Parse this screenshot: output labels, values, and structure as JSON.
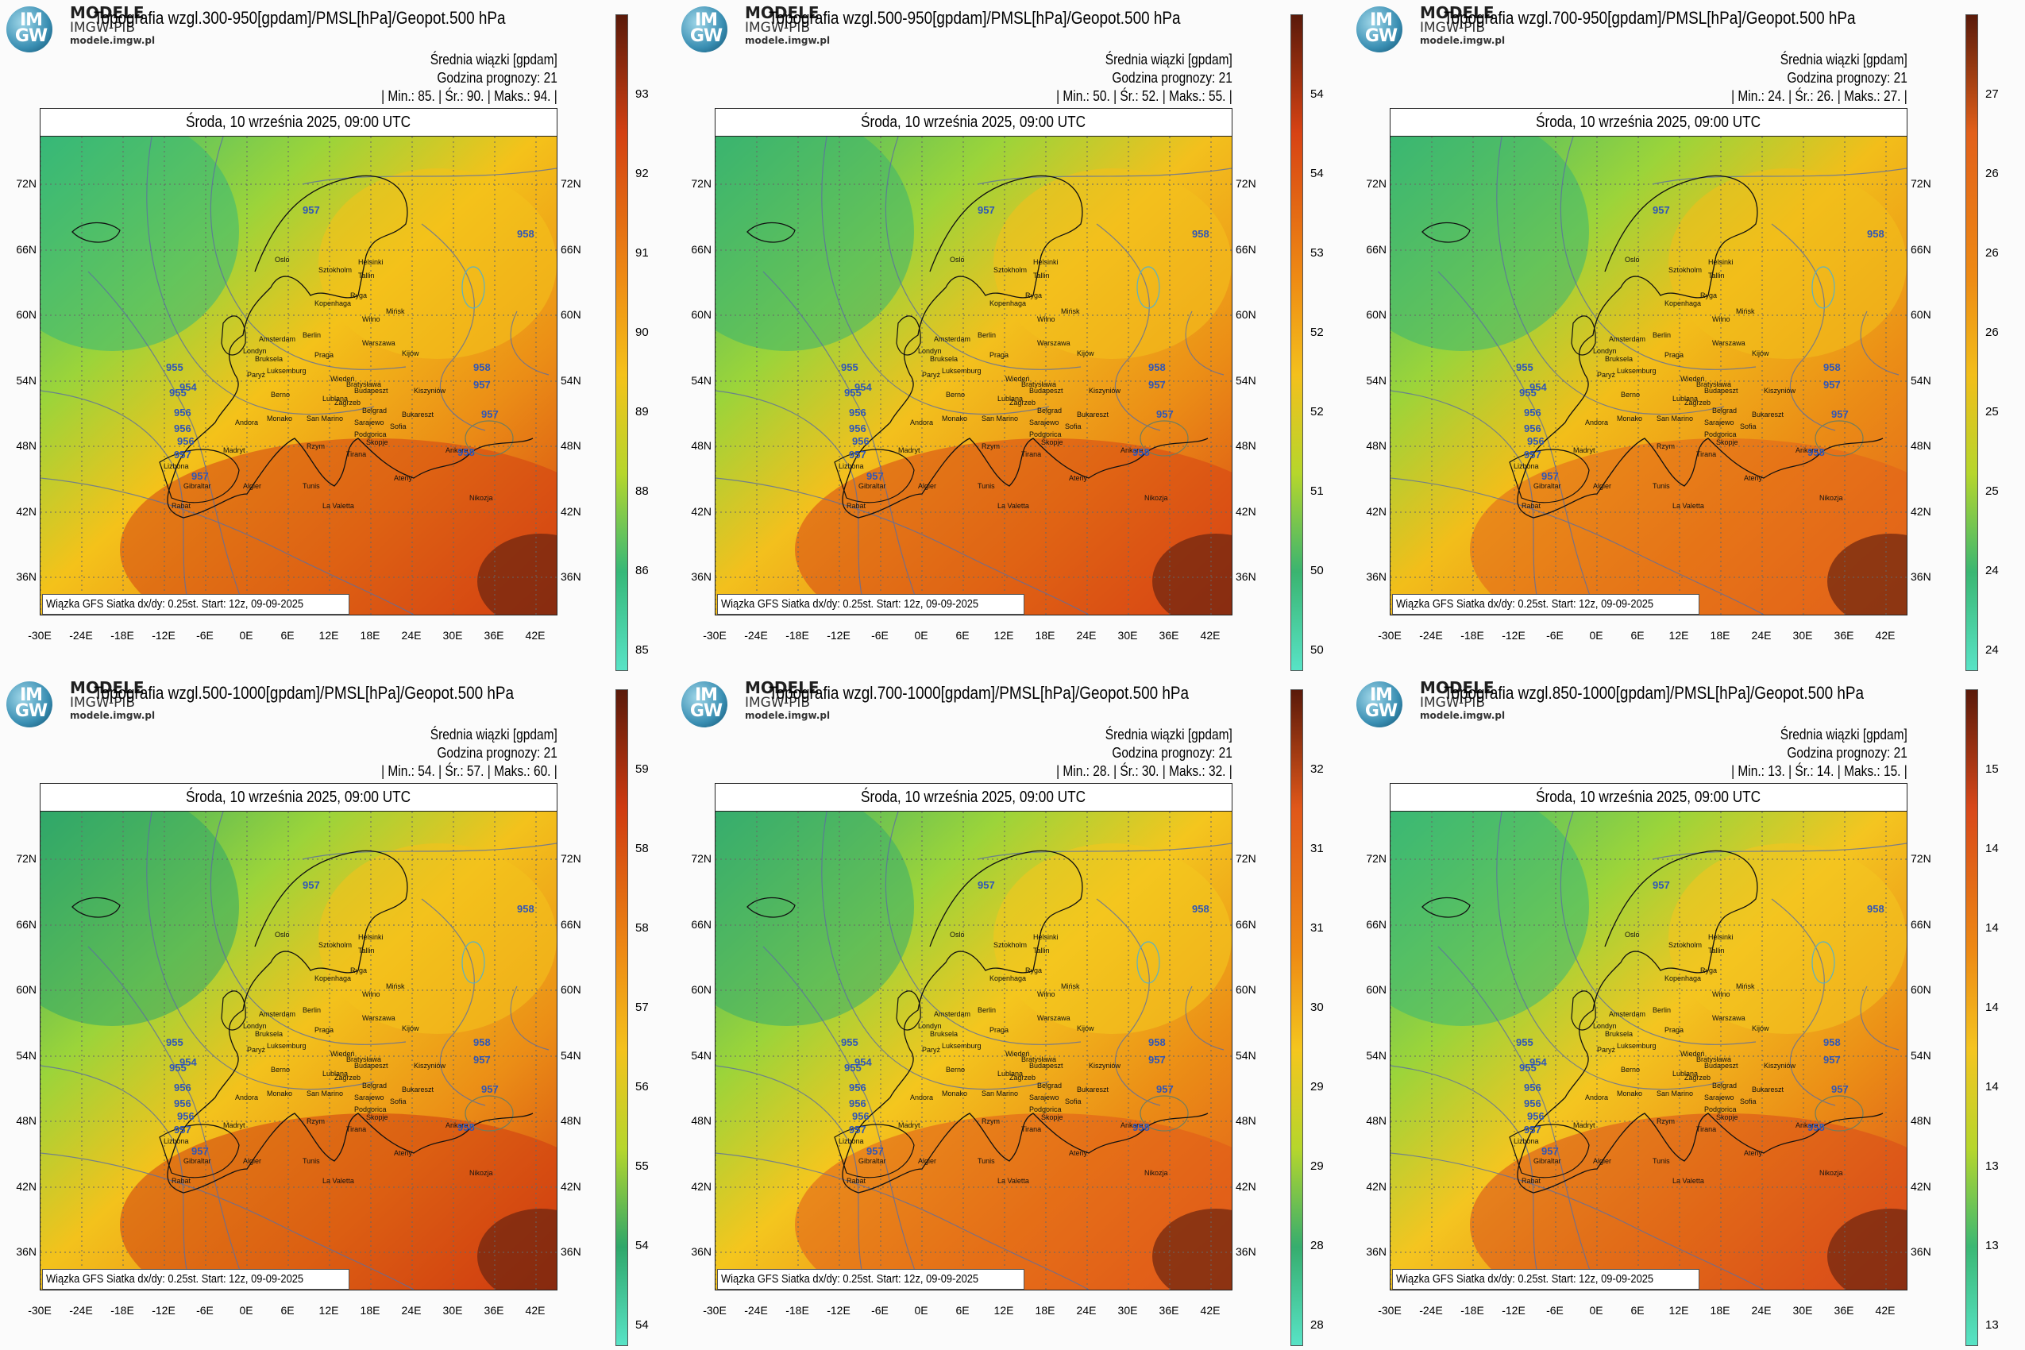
{
  "brand": {
    "line1": "MODELE",
    "line2": "IMGW-PIB",
    "url": "modele.imgw.pl",
    "logo_text": "IM GW"
  },
  "common": {
    "subtitle": "Średnia wiązki [gpdam]",
    "forecast_hour": "Godzina prognozy: 21",
    "date": "Środa, 10 września 2025, 09:00 UTC",
    "credit": "Wiązka GFS Siatka dx/dy: 0.25st. Start: 12z, 09-09-2025",
    "lat_labels": [
      "72N",
      "66N",
      "60N",
      "54N",
      "48N",
      "42N",
      "36N"
    ],
    "lon_labels": [
      "-30E",
      "-24E",
      "-18E",
      "-12E",
      "-6E",
      "0E",
      "6E",
      "12E",
      "18E",
      "24E",
      "30E",
      "36E",
      "42E"
    ],
    "cities": [
      "Oslo",
      "Sztokholm",
      "Helsinki",
      "Tallin",
      "Ryga",
      "Kopenhaga",
      "Wilno",
      "Mińsk",
      "Amsterdam",
      "Berlin",
      "Warszawa",
      "Londyn",
      "Bruksela",
      "Luksemburg",
      "Praga",
      "Kijów",
      "Paryż",
      "Wiedeń",
      "Bratysława",
      "Budapeszt",
      "Kiszyniów",
      "Berno",
      "Lublana",
      "Zagrzeb",
      "Belgrad",
      "Bukareszt",
      "Andora",
      "Monako",
      "San Marino",
      "Sarajewo",
      "Podgorica",
      "Sofia",
      "Madryt",
      "Rzym",
      "Skopje",
      "Tirana",
      "Lizbona",
      "Ankara",
      "Ateny",
      "Gibraltar",
      "Algier",
      "Tunis",
      "Rabat",
      "La Valetta",
      "Nikozja"
    ],
    "iso_labels": [
      "957",
      "955",
      "954",
      "955",
      "956",
      "956",
      "956",
      "957",
      "957",
      "958",
      "957",
      "958",
      "957",
      "958"
    ]
  },
  "panels": [
    {
      "title": "Topografia wzgl.300-950[gpdam]/PMSL[hPa]/Geopot.500 hPa",
      "stats": "| Min.: 85. | Śr.: 90. | Maks.: 94. |",
      "colorbar": [
        "93",
        "92",
        "91",
        "90",
        "89",
        "88",
        "86",
        "85"
      ],
      "colors": {
        "green": "#36b878",
        "yellow": "#f4c21a",
        "red": "#d34012"
      }
    },
    {
      "title": "Topografia wzgl.500-950[gpdam]/PMSL[hPa]/Geopot.500 hPa",
      "stats": "| Min.: 50. | Śr.: 52. | Maks.: 55. |",
      "colorbar": [
        "54",
        "54",
        "53",
        "52",
        "52",
        "51",
        "50",
        "50"
      ],
      "colors": {
        "green": "#3ab470",
        "yellow": "#f3c01d",
        "red": "#d74314"
      }
    },
    {
      "title": "Topografia wzgl.700-950[gpdam]/PMSL[hPa]/Geopot.500 hPa",
      "stats": "| Min.: 24. | Śr.: 26. | Maks.: 27. |",
      "colorbar": [
        "27",
        "26",
        "26",
        "26",
        "25",
        "25",
        "24",
        "24"
      ],
      "colors": {
        "green": "#3ab772",
        "yellow": "#f2be1a",
        "red": "#e2601a"
      }
    },
    {
      "title": "Topografia wzgl.500-1000[gpdam]/PMSL[hPa]/Geopot.500 hPa",
      "stats": "| Min.: 54. | Śr.: 57. | Maks.: 60. |",
      "colorbar": [
        "59",
        "58",
        "58",
        "57",
        "56",
        "55",
        "54",
        "54"
      ],
      "colors": {
        "green": "#2fa76a",
        "yellow": "#f3c21c",
        "red": "#cf3a10"
      }
    },
    {
      "title": "Topografia wzgl.700-1000[gpdam]/PMSL[hPa]/Geopot.500 hPa",
      "stats": "| Min.: 28. | Śr.: 30. | Maks.: 32. |",
      "colorbar": [
        "32",
        "31",
        "31",
        "30",
        "29",
        "29",
        "28",
        "28"
      ],
      "colors": {
        "green": "#36ad6e",
        "yellow": "#f4c61e",
        "red": "#e0571a"
      }
    },
    {
      "title": "Topografia wzgl.850-1000[gpdam]/PMSL[hPa]/Geopot.500 hPa",
      "stats": "| Min.: 13. | Śr.: 14. | Maks.: 15. |",
      "colorbar": [
        "15",
        "14",
        "14",
        "14",
        "14",
        "13",
        "13",
        "13"
      ],
      "colors": {
        "green": "#3bb874",
        "yellow": "#f4c520",
        "red": "#d8481a"
      }
    }
  ]
}
